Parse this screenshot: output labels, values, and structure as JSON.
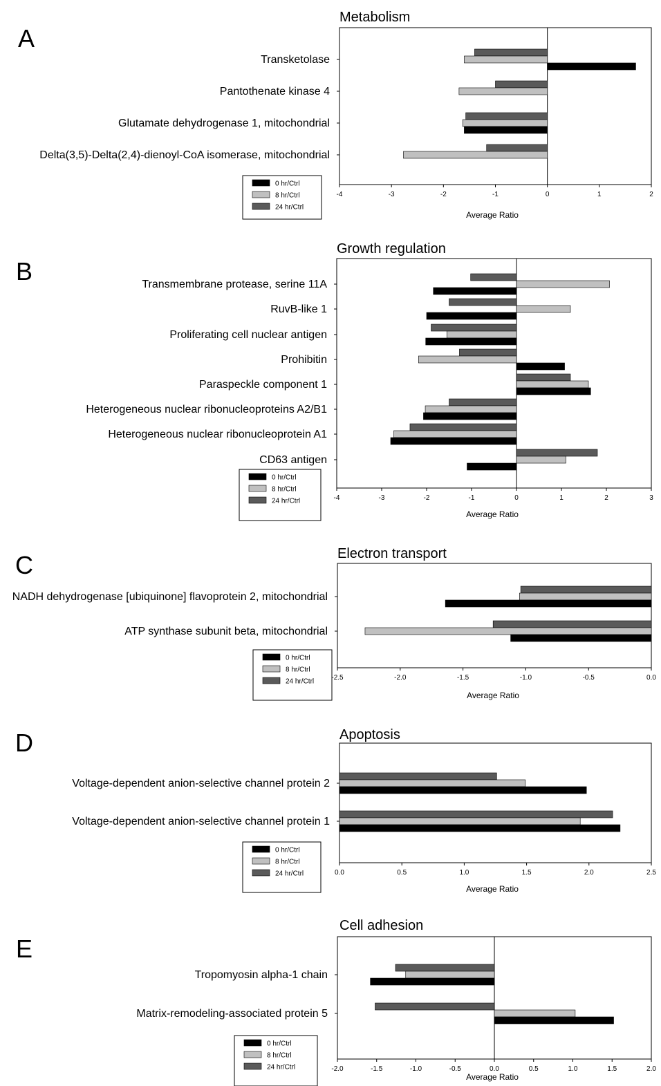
{
  "colors": {
    "s0": "#000000",
    "s1": "#c0c0c0",
    "s2": "#5a5a5a"
  },
  "chart_data": [
    {
      "panel_label": "A",
      "type": "bar",
      "orientation": "horizontal",
      "title": "Metabolism",
      "xlabel": "Average Ratio",
      "xlim": [
        -4,
        2
      ],
      "ticks": [
        "-4",
        "-3",
        "-2",
        "-1",
        "0",
        "1",
        "2"
      ],
      "tick_values": [
        -4,
        -3,
        -2,
        -1,
        0,
        1,
        2
      ],
      "legend": [
        "0 hr/Ctrl",
        "8 hr/Ctrl",
        "24 hr/Ctrl"
      ],
      "categories": [
        "Transketolase",
        "Pantothenate kinase 4",
        "Glutamate dehydrogenase 1, mitochondrial",
        "Delta(3,5)-Delta(2,4)-dienoyl-CoA isomerase, mitochondrial"
      ],
      "series": [
        {
          "name": "0 hr/Ctrl",
          "values": [
            1.7,
            null,
            -1.6,
            null
          ]
        },
        {
          "name": "8 hr/Ctrl",
          "values": [
            -1.6,
            -1.7,
            -1.63,
            -2.77
          ]
        },
        {
          "name": "24 hr/Ctrl",
          "values": [
            -1.4,
            -1.0,
            -1.57,
            -1.17
          ]
        }
      ]
    },
    {
      "panel_label": "B",
      "type": "bar",
      "orientation": "horizontal",
      "title": "Growth regulation",
      "xlabel": "Average Ratio",
      "xlim": [
        -4,
        3
      ],
      "ticks": [
        "-4",
        "-3",
        "-2",
        "-1",
        "0",
        "1",
        "2",
        "3"
      ],
      "tick_values": [
        -4,
        -3,
        -2,
        -1,
        0,
        1,
        2,
        3
      ],
      "legend": [
        "0 hr/Ctrl",
        "8 hr/Ctrl",
        "24 hr/Ctrl"
      ],
      "categories": [
        "Transmembrane protease, serine 11A",
        "RuvB-like 1",
        "Proliferating cell nuclear antigen",
        "Prohibitin",
        "Paraspeckle component 1",
        "Heterogeneous nuclear ribonucleoproteins A2/B1",
        "Heterogeneous nuclear ribonucleoprotein A1",
        "CD63 antigen"
      ],
      "series": [
        {
          "name": "0 hr/Ctrl",
          "values": [
            -1.85,
            -2.0,
            -2.02,
            1.07,
            1.65,
            -2.07,
            -2.8,
            -1.1
          ]
        },
        {
          "name": "8 hr/Ctrl",
          "values": [
            2.07,
            1.2,
            -1.55,
            -2.18,
            1.6,
            -2.03,
            -2.73,
            1.1
          ]
        },
        {
          "name": "24 hr/Ctrl",
          "values": [
            -1.02,
            -1.5,
            -1.9,
            -1.27,
            1.2,
            -1.5,
            -2.37,
            1.8
          ]
        }
      ]
    },
    {
      "panel_label": "C",
      "type": "bar",
      "orientation": "horizontal",
      "title": "Electron transport",
      "xlabel": "Average Ratio",
      "xlim": [
        -2.5,
        0.0
      ],
      "ticks": [
        "-2.5",
        "-2.0",
        "-1.5",
        "-1.0",
        "-0.5",
        "0.0"
      ],
      "tick_values": [
        -2.5,
        -2.0,
        -1.5,
        -1.0,
        -0.5,
        0.0
      ],
      "legend": [
        "0 hr/Ctrl",
        "8 hr/Ctrl",
        "24 hr/Ctrl"
      ],
      "categories": [
        "NADH dehydrogenase [ubiquinone] flavoprotein 2, mitochondrial",
        "ATP synthase subunit beta, mitochondrial"
      ],
      "series": [
        {
          "name": "0 hr/Ctrl",
          "values": [
            -1.64,
            -1.12
          ]
        },
        {
          "name": "8 hr/Ctrl",
          "values": [
            -1.05,
            -2.28
          ]
        },
        {
          "name": "24 hr/Ctrl",
          "values": [
            -1.04,
            -1.26
          ]
        }
      ]
    },
    {
      "panel_label": "D",
      "type": "bar",
      "orientation": "horizontal",
      "title": "Apoptosis",
      "xlabel": "Average Ratio",
      "xlim": [
        0.0,
        2.5
      ],
      "ticks": [
        "0.0",
        "0.5",
        "1.0",
        "1.5",
        "2.0",
        "2.5"
      ],
      "tick_values": [
        0.0,
        0.5,
        1.0,
        1.5,
        2.0,
        2.5
      ],
      "legend": [
        "0 hr/Ctrl",
        "8 hr/Ctrl",
        "24 hr/Ctrl"
      ],
      "categories": [
        "Voltage-dependent anion-selective channel protein 2",
        "Voltage-dependent anion-selective channel protein 1"
      ],
      "series": [
        {
          "name": "0 hr/Ctrl",
          "values": [
            1.98,
            2.25
          ]
        },
        {
          "name": "8 hr/Ctrl",
          "values": [
            1.49,
            1.93
          ]
        },
        {
          "name": "24 hr/Ctrl",
          "values": [
            1.26,
            2.19
          ]
        }
      ]
    },
    {
      "panel_label": "E",
      "type": "bar",
      "orientation": "horizontal",
      "title": "Cell adhesion",
      "xlabel": "Average Ratio",
      "xlim": [
        -2.0,
        2.0
      ],
      "ticks": [
        "-2.0",
        "-1.5",
        "-1.0",
        "-0.5",
        "0.0",
        "0.5",
        "1.0",
        "1.5",
        "2.0"
      ],
      "tick_values": [
        -2.0,
        -1.5,
        -1.0,
        -0.5,
        0.0,
        0.5,
        1.0,
        1.5,
        2.0
      ],
      "legend": [
        "0 hr/Ctrl",
        "8 hr/Ctrl",
        "24 hr/Ctrl"
      ],
      "categories": [
        "Tropomyosin alpha-1 chain",
        "Matrix-remodeling-associated protein 5"
      ],
      "series": [
        {
          "name": "0 hr/Ctrl",
          "values": [
            -1.58,
            1.52
          ]
        },
        {
          "name": "8 hr/Ctrl",
          "values": [
            -1.13,
            1.03
          ]
        },
        {
          "name": "24 hr/Ctrl",
          "values": [
            -1.26,
            -1.52
          ]
        }
      ]
    }
  ]
}
